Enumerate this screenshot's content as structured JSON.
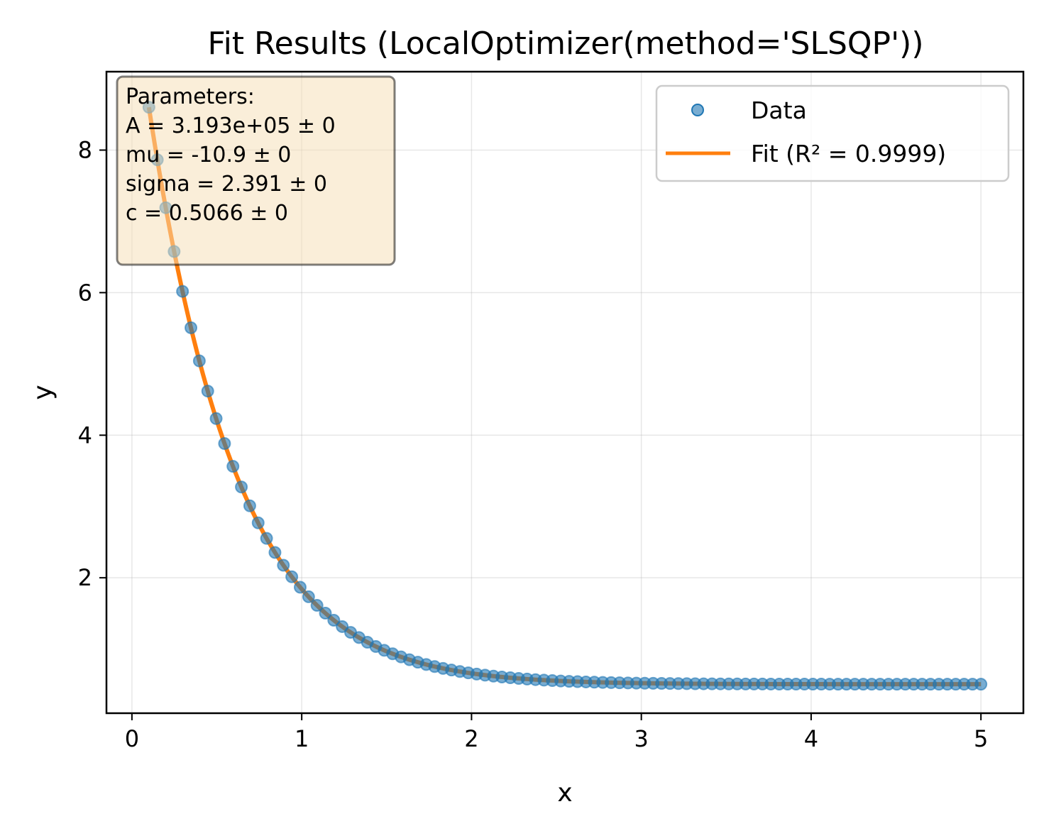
{
  "chart_data": {
    "type": "scatter",
    "title": "Fit Results (LocalOptimizer(method='SLSQP'))",
    "xlabel": "x",
    "ylabel": "y",
    "xlim": [
      -0.15,
      5.25
    ],
    "ylim": [
      0.1,
      9.1
    ],
    "xticks": [
      0,
      1,
      2,
      3,
      4,
      5
    ],
    "yticks": [
      2,
      4,
      6,
      8
    ],
    "grid": true,
    "legend_position": "top-right",
    "legend": {
      "data_label": "Data",
      "fit_label": "Fit (R² = 0.9999)"
    },
    "param_box": {
      "lines": [
        "Parameters:",
        "A = 3.193e+05 ± 0",
        "mu = -10.9 ± 0",
        "sigma = 2.391 ± 0",
        "c = 0.5066 ± 0"
      ]
    },
    "model": {
      "A": 319300,
      "mu": -10.9,
      "sigma": 2.391,
      "c": 0.5066
    },
    "data_x_range": [
      0.1,
      5.0
    ],
    "data_points": 100,
    "colors": {
      "data": "#1f77b4",
      "fit": "#ff7f0e",
      "box": "#f5deb3"
    }
  }
}
